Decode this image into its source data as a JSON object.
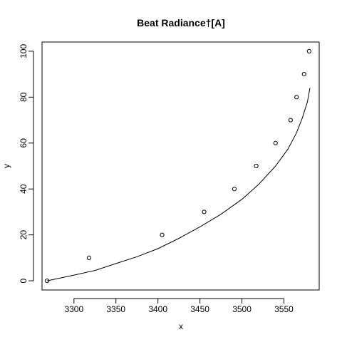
{
  "chart_data": {
    "type": "scatter",
    "title": "Beat Radiance†[A]",
    "xlabel": "x",
    "ylabel": "y",
    "xlim": [
      3262,
      3592
    ],
    "ylim": [
      -4,
      104
    ],
    "x_ticks": [
      "3300",
      "3350",
      "3400",
      "3450",
      "3500",
      "3550"
    ],
    "y_ticks": [
      "0",
      "20",
      "40",
      "60",
      "80",
      "100"
    ],
    "grid": false,
    "legend": "none",
    "series": [
      {
        "kind": "points",
        "marker": "open-circle",
        "x": [
          3268,
          3318,
          3405,
          3455,
          3491,
          3517,
          3540,
          3558,
          3565,
          3574,
          3580
        ],
        "y": [
          0,
          10,
          20,
          30,
          40,
          50,
          60,
          70,
          80,
          90,
          100
        ]
      },
      {
        "kind": "line",
        "x": [
          3268,
          3300,
          3325,
          3350,
          3375,
          3400,
          3425,
          3450,
          3475,
          3500,
          3520,
          3540,
          3555,
          3565,
          3572,
          3578,
          3581
        ],
        "y": [
          0,
          2.5,
          4.5,
          7.5,
          10.5,
          14,
          18.5,
          23.5,
          29,
          35.5,
          42,
          50,
          57.5,
          64.5,
          71,
          78,
          84
        ]
      }
    ]
  }
}
